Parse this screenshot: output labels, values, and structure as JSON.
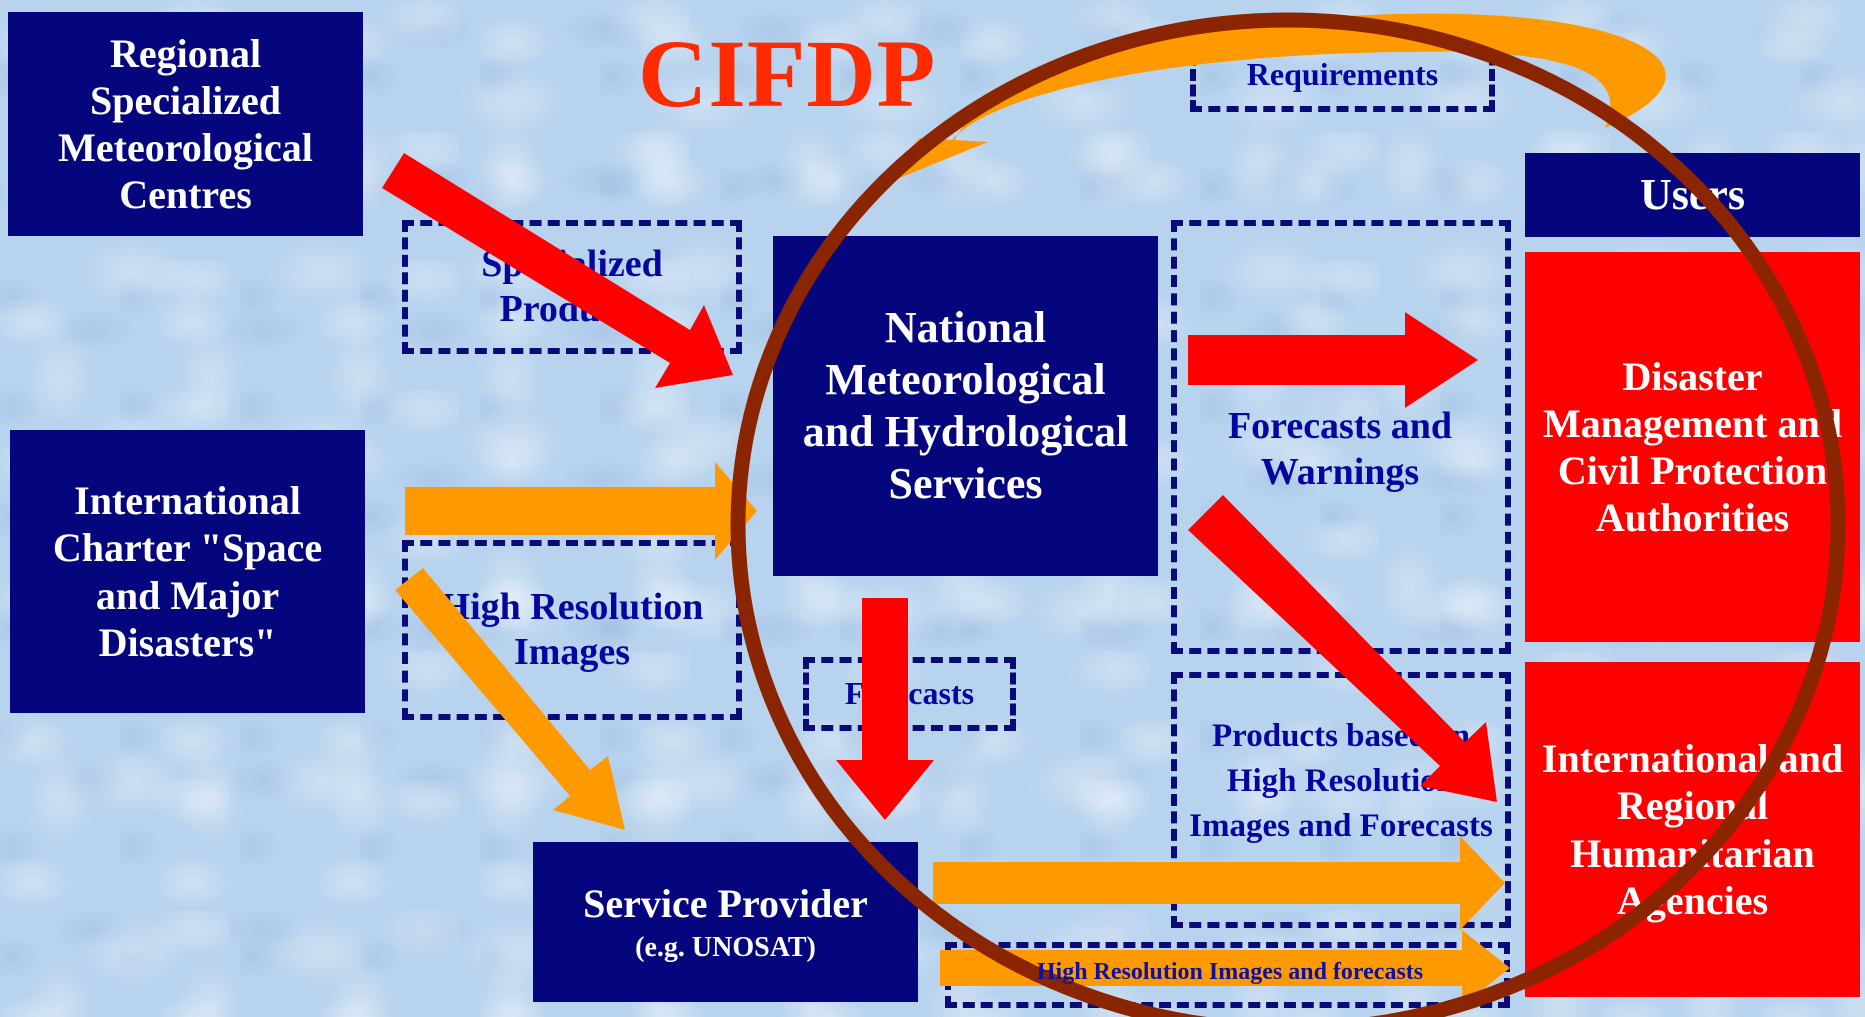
{
  "title": "CIFDP",
  "boxes": {
    "rsmc": "Regional Specialized Meteorological Centres",
    "charter": "International Charter \"Space and Major Disasters\"",
    "nmhs": "National Meteorological and Hydrological Services",
    "service_provider": "Service Provider",
    "service_provider_note": "(e.g. UNOSAT)",
    "users_header": "Users",
    "disaster_mgmt": "Disaster Management and Civil Protection Authorities",
    "humanitarian": "International and Regional Humanitarian Agencies"
  },
  "labels": {
    "requirements": "Requirements",
    "specialized_products": "Specialized Products",
    "high_res_images": "High Resolution Images",
    "forecasts": "Forecasts",
    "forecasts_warnings": "Forecasts and Warnings",
    "products_based": "Products based on High Resolution Images and Forecasts",
    "high_res_forecasts": "High Resolution Images and forecasts"
  },
  "colors": {
    "navy": "#05057e",
    "red": "#ff0000",
    "orange": "#ff9900",
    "circle": "#8b2500",
    "title": "#ff2a00"
  }
}
